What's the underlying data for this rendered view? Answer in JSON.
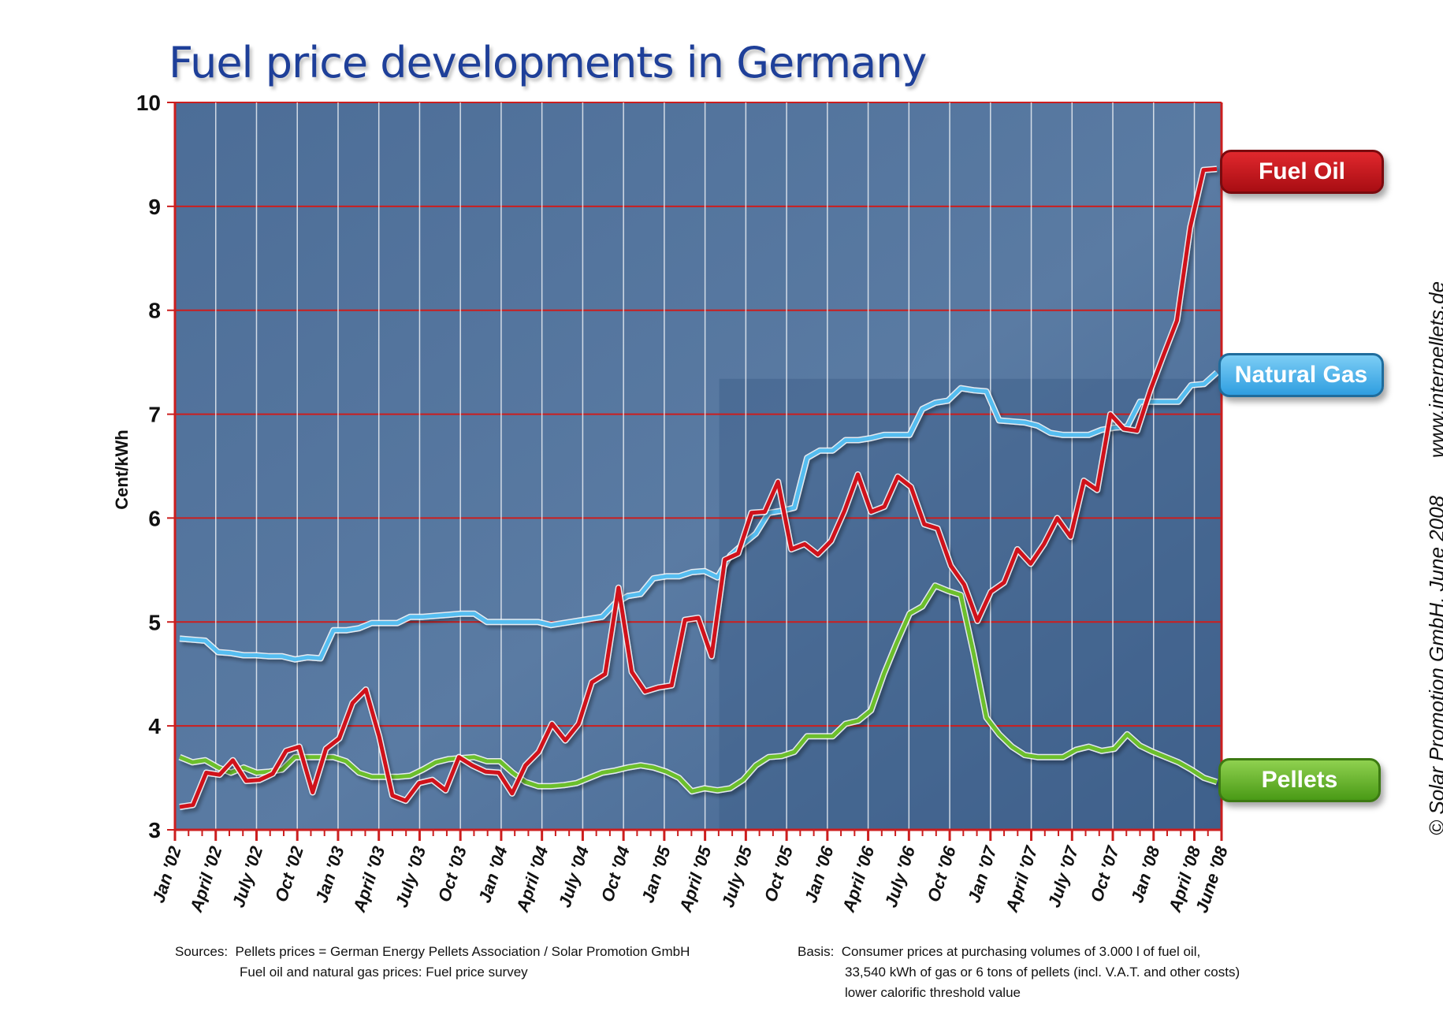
{
  "title": "Fuel price developments in Germany",
  "colors": {
    "fuel_oil": "#d0121b",
    "natural_gas": "#55bdf0",
    "pellets": "#6cbf2c",
    "plot_bg": "#4f6f98",
    "grid": "#cc1e1e"
  },
  "chart_data": {
    "type": "line",
    "ylabel": "Cent/kWh",
    "ylim": [
      3,
      10
    ],
    "yticks": [
      "3",
      "4",
      "5",
      "6",
      "7",
      "8",
      "9",
      "10"
    ],
    "x_tick_labels": [
      "Jan '02",
      "April '02",
      "July '02",
      "Oct '02",
      "Jan '03",
      "April '03",
      "July '03",
      "Oct '03",
      "Jan '04",
      "April '04",
      "July '04",
      "Oct '04",
      "Jan '05",
      "April '05",
      "July '05",
      "Oct '05",
      "Jan '06",
      "April '06",
      "July '06",
      "Oct '06",
      "Jan '07",
      "April '07",
      "July '07",
      "Oct '07",
      "Jan '08",
      "April '08",
      "June '08"
    ],
    "grid": true,
    "series": [
      {
        "name": "Fuel Oil",
        "values": [
          3.22,
          3.24,
          3.55,
          3.53,
          3.67,
          3.47,
          3.48,
          3.54,
          3.76,
          3.8,
          3.36,
          3.78,
          3.88,
          4.22,
          4.35,
          3.9,
          3.33,
          3.28,
          3.45,
          3.48,
          3.38,
          3.7,
          3.62,
          3.56,
          3.55,
          3.35,
          3.62,
          3.75,
          4.02,
          3.86,
          4.02,
          4.42,
          4.5,
          5.33,
          4.52,
          4.33,
          4.37,
          4.39,
          5.02,
          5.04,
          4.67,
          5.6,
          5.66,
          6.05,
          6.06,
          6.35,
          5.7,
          5.75,
          5.65,
          5.78,
          6.07,
          6.42,
          6.06,
          6.11,
          6.4,
          6.3,
          5.94,
          5.9,
          5.54,
          5.36,
          5.01,
          5.29,
          5.38,
          5.7,
          5.56,
          5.75,
          6.0,
          5.82,
          6.36,
          6.27,
          7.0,
          6.86,
          6.84,
          7.23,
          7.57,
          7.9,
          8.8,
          9.35,
          9.36
        ]
      },
      {
        "name": "Natural Gas",
        "values": [
          4.84,
          4.83,
          4.82,
          4.71,
          4.7,
          4.68,
          4.68,
          4.67,
          4.67,
          4.64,
          4.66,
          4.65,
          4.92,
          4.92,
          4.94,
          4.99,
          4.99,
          4.99,
          5.05,
          5.05,
          5.06,
          5.07,
          5.08,
          5.08,
          5.0,
          5.0,
          5.0,
          5.0,
          5.0,
          4.97,
          4.99,
          5.01,
          5.03,
          5.05,
          5.18,
          5.25,
          5.27,
          5.42,
          5.44,
          5.44,
          5.48,
          5.49,
          5.43,
          5.64,
          5.75,
          5.85,
          6.05,
          6.07,
          6.1,
          6.58,
          6.65,
          6.65,
          6.75,
          6.75,
          6.77,
          6.8,
          6.8,
          6.8,
          7.05,
          7.11,
          7.13,
          7.25,
          7.23,
          7.22,
          6.94,
          6.93,
          6.92,
          6.89,
          6.82,
          6.8,
          6.8,
          6.8,
          6.85,
          6.87,
          6.88,
          7.12,
          7.12,
          7.12,
          7.12,
          7.28,
          7.29,
          7.4
        ]
      },
      {
        "name": "Pellets",
        "values": [
          3.7,
          3.65,
          3.67,
          3.6,
          3.55,
          3.6,
          3.55,
          3.56,
          3.58,
          3.7,
          3.7,
          3.7,
          3.7,
          3.66,
          3.55,
          3.51,
          3.51,
          3.51,
          3.52,
          3.58,
          3.65,
          3.68,
          3.69,
          3.7,
          3.66,
          3.66,
          3.55,
          3.46,
          3.42,
          3.42,
          3.43,
          3.45,
          3.5,
          3.55,
          3.57,
          3.6,
          3.62,
          3.6,
          3.56,
          3.5,
          3.37,
          3.4,
          3.38,
          3.4,
          3.48,
          3.62,
          3.7,
          3.71,
          3.75,
          3.9,
          3.9,
          3.9,
          4.02,
          4.05,
          4.15,
          4.5,
          4.8,
          5.08,
          5.15,
          5.35,
          5.3,
          5.26,
          4.7,
          4.08,
          3.92,
          3.8,
          3.72,
          3.7,
          3.7,
          3.7,
          3.77,
          3.8,
          3.76,
          3.78,
          3.92,
          3.81,
          3.75,
          3.7,
          3.65,
          3.58,
          3.5,
          3.46
        ]
      }
    ]
  },
  "notes": {
    "sources_label": "Sources:",
    "sources_line1": "Pellets prices  = German Energy Pellets Association / Solar Promotion GmbH",
    "sources_line2": "Fuel oil and natural gas prices:  Fuel price survey",
    "basis_label": "Basis:",
    "basis_line1": "Consumer prices at purchasing volumes of 3.000 l of fuel oil,",
    "basis_line2": "33,540 kWh of gas or 6 tons of pellets (incl. V.A.T. and other costs)",
    "basis_line3": "lower  calorific threshold value"
  },
  "credits": {
    "website": "www.interpellets.de",
    "copyright": "© Solar Promotion GmbH, June 2008"
  }
}
